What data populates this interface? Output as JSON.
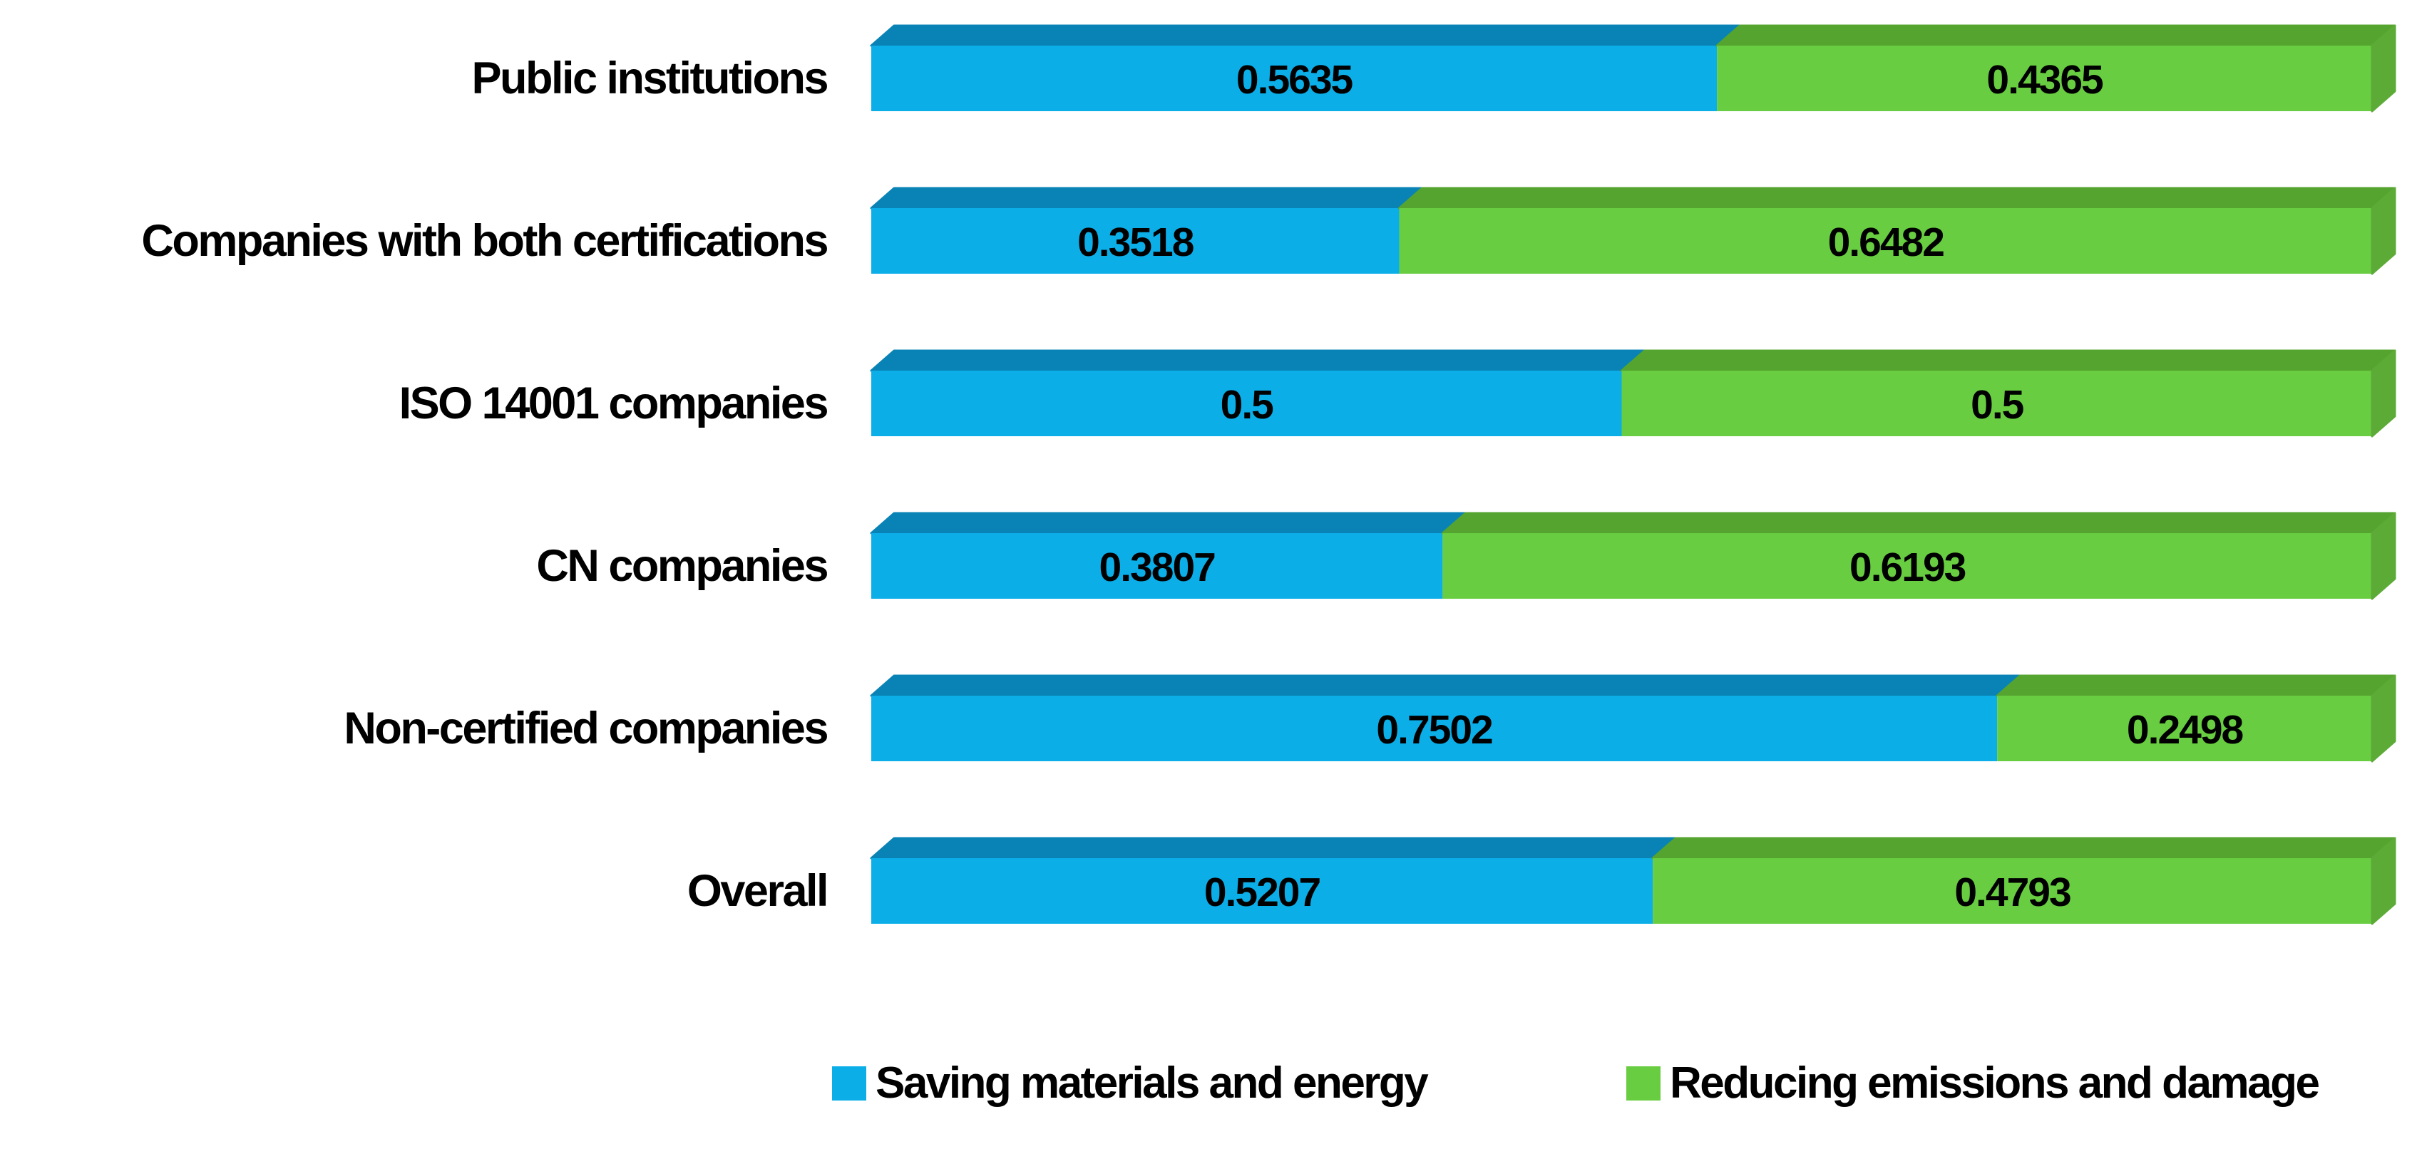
{
  "page": {
    "background": "#FFFFFF"
  },
  "chart_data": {
    "type": "bar",
    "orientation": "horizontal",
    "stacked": true,
    "style": "3d",
    "title": "",
    "xlabel": "",
    "ylabel": "",
    "xlim": [
      0,
      1
    ],
    "grid": false,
    "axes_visible": false,
    "legend_position": "bottom",
    "value_label_color": "#000000",
    "categories": [
      "Public institutions",
      "Companies with both certifications",
      "ISO 14001 companies",
      "CN companies",
      "Non-certified companies",
      "Overall"
    ],
    "series": [
      {
        "name": "Saving materials and energy",
        "color": "#0CAEE8",
        "top_color": "#0983B5",
        "values": [
          0.5635,
          0.3518,
          0.5,
          0.3807,
          0.7502,
          0.5207
        ],
        "value_labels": [
          "0.5635",
          "0.3518",
          "0.5",
          "0.3807",
          "0.7502",
          "0.5207"
        ]
      },
      {
        "name": "Reducing emissions and damage",
        "color": "#68CD41",
        "top_color": "#55A42F",
        "side_color": "#5CAB36",
        "values": [
          0.4365,
          0.6482,
          0.5,
          0.6193,
          0.2498,
          0.4793
        ],
        "value_labels": [
          "0.4365",
          "0.6482",
          "0.5",
          "0.6193",
          "0.2498",
          "0.4793"
        ]
      }
    ]
  }
}
